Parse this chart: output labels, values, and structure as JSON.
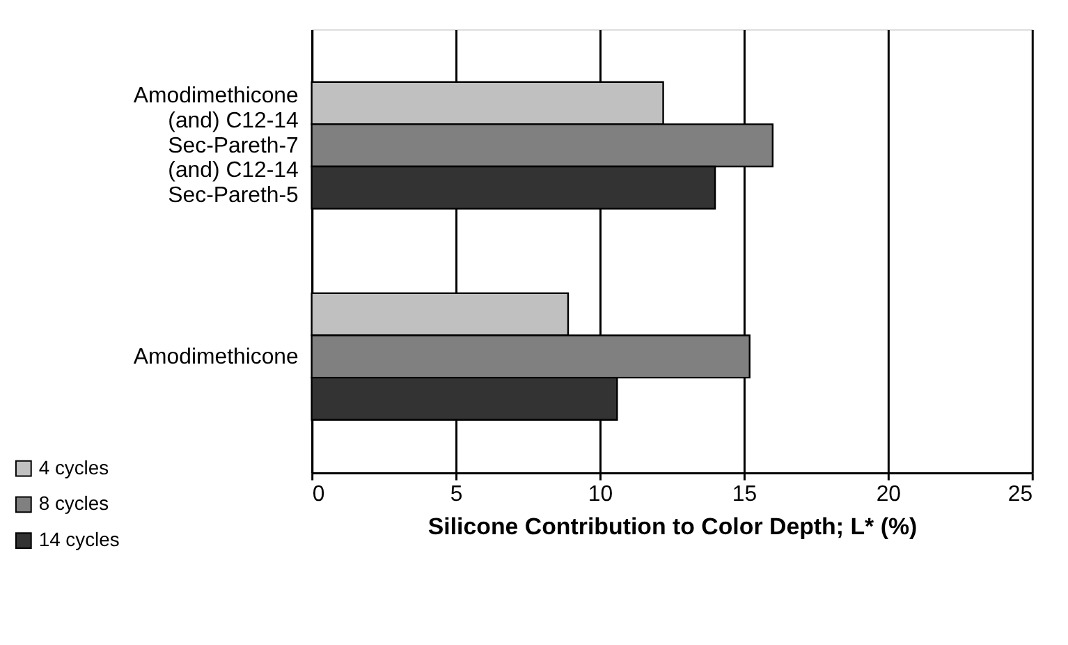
{
  "chart_data": {
    "type": "bar",
    "orientation": "horizontal",
    "categories": [
      "Amodimethicone\n(and) C12-14\nSec-Pareth-7\n(and) C12-14\nSec-Pareth-5",
      "Amodimethicone"
    ],
    "series": [
      {
        "name": "4 cycles",
        "color": "#c0c0c0",
        "values": [
          12.2,
          8.9
        ]
      },
      {
        "name": "8 cycles",
        "color": "#808080",
        "values": [
          16.0,
          15.2
        ]
      },
      {
        "name": "14 cycles",
        "color": "#333333",
        "values": [
          14.0,
          10.6
        ]
      }
    ],
    "xlabel": "Silicone Contribution to Color Depth; L* (%)",
    "xlim": [
      0,
      25
    ],
    "xticks": [
      0,
      5,
      10,
      15,
      20,
      25
    ],
    "grid": "x",
    "legend": "bottom left"
  }
}
